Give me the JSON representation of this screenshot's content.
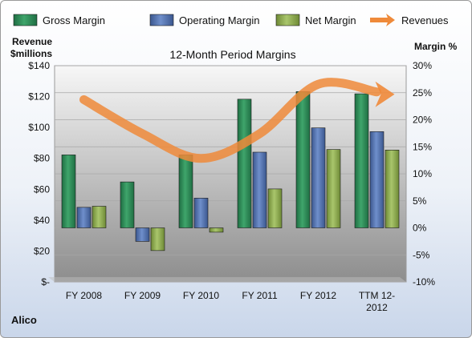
{
  "chart_data": {
    "type": "bar",
    "title": "12-Month Period Margins",
    "left_axis_label": [
      "Revenue",
      "$millions"
    ],
    "right_axis_label": "Margin %",
    "categories": [
      "FY 2008",
      "FY 2009",
      "FY 2010",
      "FY 2011",
      "FY 2012",
      "TTM 12-2012"
    ],
    "left_ticks": [
      "$-",
      "$20",
      "$40",
      "$60",
      "$80",
      "$100",
      "$120",
      "$140"
    ],
    "left_ylim": [
      0,
      140
    ],
    "right_ticks": [
      "-10%",
      "-5%",
      "0%",
      "5%",
      "10%",
      "15%",
      "20%",
      "25%",
      "30%"
    ],
    "right_ylim": [
      -10,
      30
    ],
    "series": [
      {
        "name": "Gross Margin",
        "axis": "right",
        "color": "#2e8b57",
        "values": [
          13.5,
          8.5,
          13.5,
          23.8,
          25.2,
          24.8
        ]
      },
      {
        "name": "Operating Margin",
        "axis": "right",
        "color": "#4f6fb0",
        "values": [
          3.8,
          -2.5,
          5.5,
          14.0,
          18.5,
          17.8
        ]
      },
      {
        "name": "Net Margin",
        "axis": "right",
        "color": "#8fb050",
        "values": [
          4.0,
          -4.2,
          -0.8,
          7.2,
          14.5,
          14.4
        ]
      },
      {
        "name": "Revenues",
        "axis": "left",
        "type": "line",
        "color": "#ef8a3a",
        "values": [
          118,
          96,
          80,
          96,
          128,
          123
        ]
      }
    ],
    "grid": true,
    "legend": "top",
    "footer": "Alico"
  }
}
